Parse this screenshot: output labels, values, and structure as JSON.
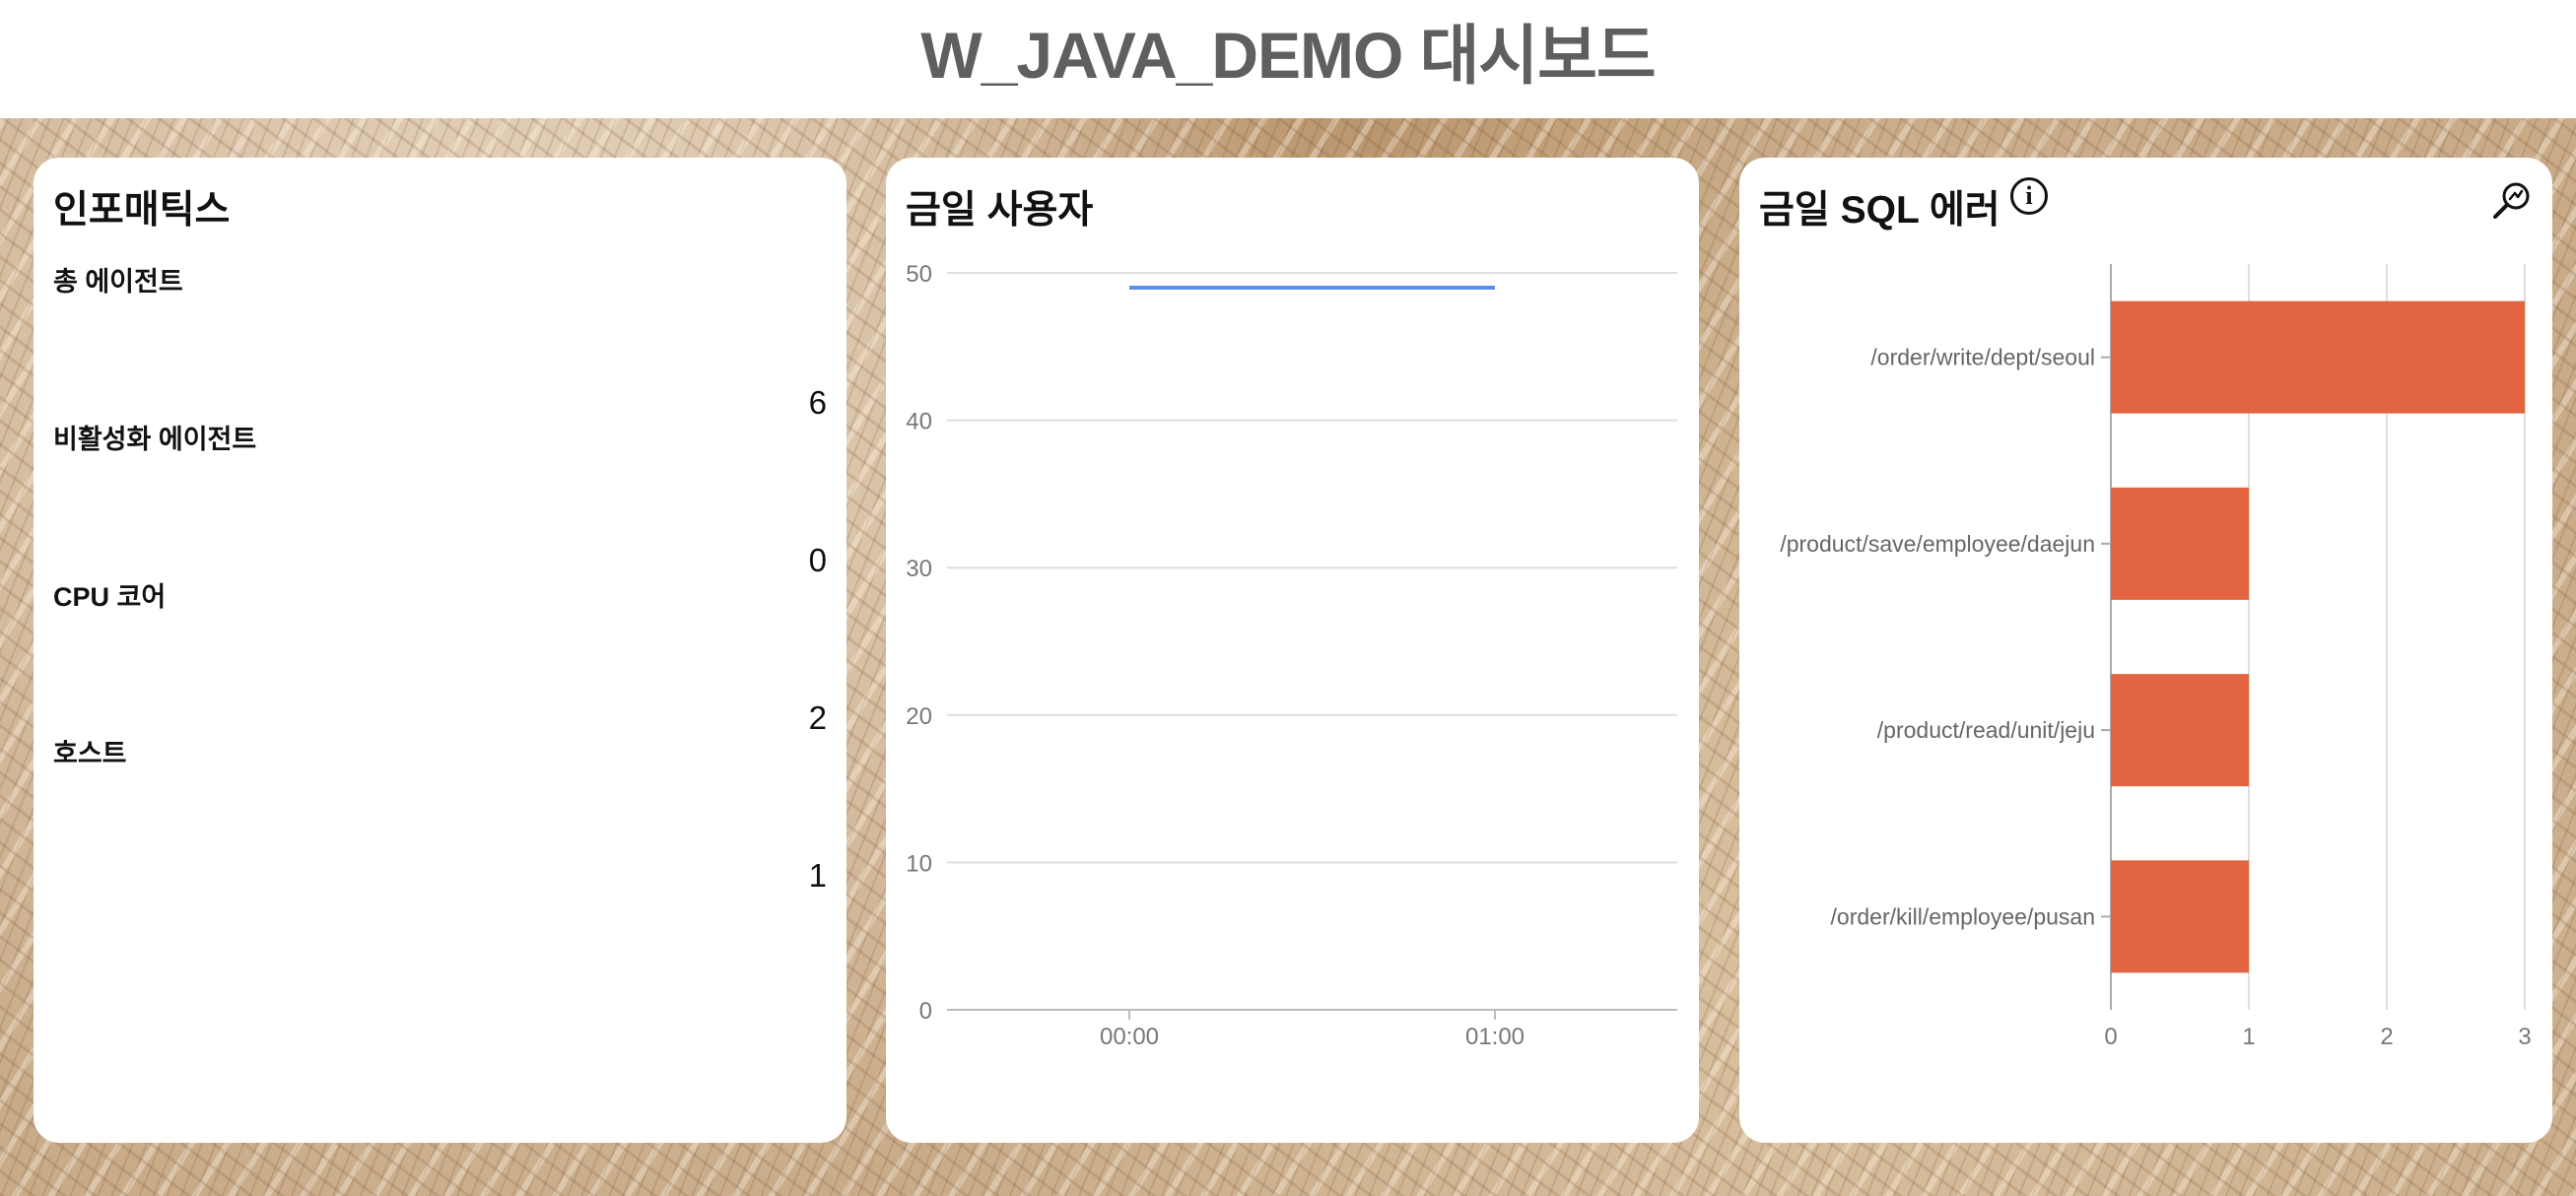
{
  "header": {
    "title": "W_JAVA_DEMO 대시보드"
  },
  "infomatics": {
    "title": "인포매틱스",
    "metrics": [
      {
        "label": "총 에이전트",
        "value": "6"
      },
      {
        "label": "비활성화 에이전트",
        "value": "0"
      },
      {
        "label": "CPU 코어",
        "value": "2"
      },
      {
        "label": "호스트",
        "value": "1"
      }
    ]
  },
  "users_panel": {
    "title": "금일 사용자"
  },
  "sql_panel": {
    "title": "금일 SQL 에러",
    "info_icon": "info-circle-icon",
    "zoom_icon": "zoom-search-icon"
  },
  "chart_data": [
    {
      "type": "line",
      "x": [
        "00:00",
        "01:00"
      ],
      "series": [
        {
          "values": [
            49,
            49
          ],
          "color": "#5b8def"
        }
      ],
      "yticks": [
        "0",
        "10",
        "20",
        "30",
        "40",
        "50"
      ],
      "ylim": [
        0,
        50
      ],
      "grid": true
    },
    {
      "type": "bar",
      "orientation": "horizontal",
      "categories": [
        "/order/write/dept/seoul",
        "/product/save/employee/daejun",
        "/product/read/unit/jeju",
        "/order/kill/employee/pusan"
      ],
      "values": [
        3,
        1,
        1,
        1
      ],
      "xticks": [
        "0",
        "1",
        "2",
        "3"
      ],
      "xlim": [
        0,
        3
      ],
      "color": "#e26440",
      "grid": true
    }
  ]
}
